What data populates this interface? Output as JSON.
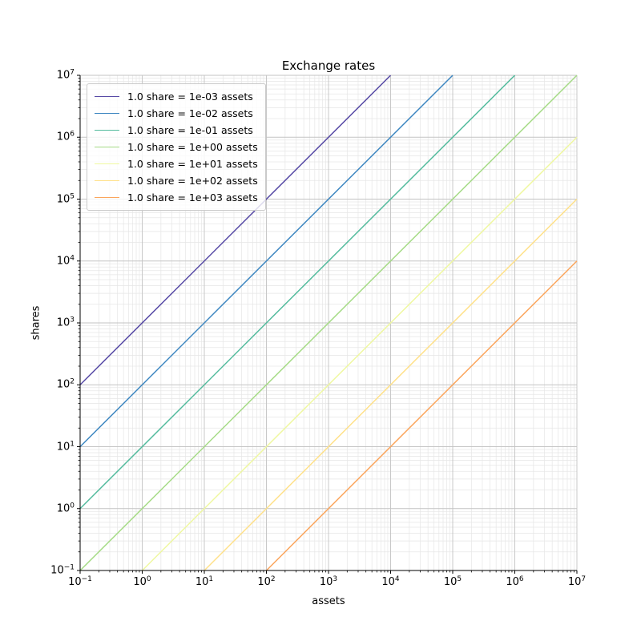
{
  "chart_data": {
    "type": "line",
    "title": "Exchange rates",
    "xlabel": "assets",
    "ylabel": "shares",
    "xscale": "log",
    "yscale": "log",
    "xlim": [
      0.1,
      10000000
    ],
    "ylim": [
      0.1,
      10000000
    ],
    "x_tick_exponents": [
      -1,
      0,
      1,
      2,
      3,
      4,
      5,
      6,
      7
    ],
    "y_tick_exponents": [
      -1,
      0,
      1,
      2,
      3,
      4,
      5,
      6,
      7
    ],
    "grid": {
      "major": true,
      "minor": true,
      "major_color": "#c3c3c3",
      "minor_color": "#e6e6e6"
    },
    "legend_position": "upper left",
    "axis_color": "#000000",
    "series": [
      {
        "label": "1.0 share = 1e-03 assets",
        "assets_per_share": 0.001,
        "color": "#5649a5",
        "endpoints_x": [
          0.1,
          10000
        ],
        "endpoints_y": [
          100,
          10000000
        ]
      },
      {
        "label": "1.0 share = 1e-02 assets",
        "assets_per_share": 0.01,
        "color": "#3e87c1",
        "endpoints_x": [
          0.1,
          100000
        ],
        "endpoints_y": [
          10,
          10000000
        ]
      },
      {
        "label": "1.0 share = 1e-01 assets",
        "assets_per_share": 0.1,
        "color": "#53bb9d",
        "endpoints_x": [
          0.1,
          1000000
        ],
        "endpoints_y": [
          1,
          10000000
        ]
      },
      {
        "label": "1.0 share = 1e+00 assets",
        "assets_per_share": 1,
        "color": "#a5db86",
        "endpoints_x": [
          0.1,
          10000000
        ],
        "endpoints_y": [
          0.1,
          10000000
        ]
      },
      {
        "label": "1.0 share = 1e+01 assets",
        "assets_per_share": 10,
        "color": "#eff8a0",
        "endpoints_x": [
          1,
          10000000
        ],
        "endpoints_y": [
          0.1,
          1000000
        ]
      },
      {
        "label": "1.0 share = 1e+02 assets",
        "assets_per_share": 100,
        "color": "#ffe18a",
        "endpoints_x": [
          10,
          10000000
        ],
        "endpoints_y": [
          0.1,
          100000
        ]
      },
      {
        "label": "1.0 share = 1e+03 assets",
        "assets_per_share": 1000,
        "color": "#fba55c",
        "endpoints_x": [
          100,
          10000000
        ],
        "endpoints_y": [
          0.1,
          10000
        ]
      }
    ]
  }
}
